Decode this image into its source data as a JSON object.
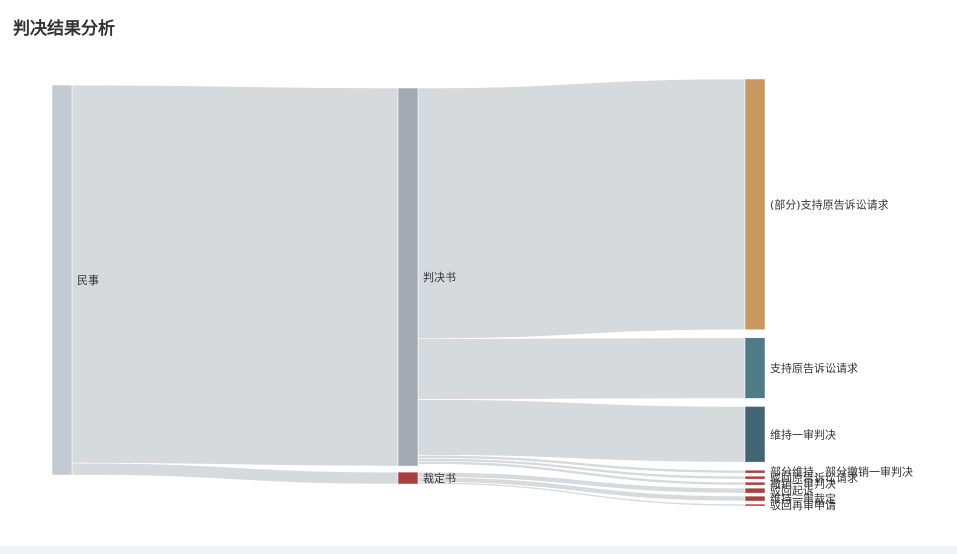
{
  "title": "判决结果分析",
  "chart_data": {
    "type": "sankey",
    "nodes": [
      {
        "id": "民事",
        "label": "民事",
        "column": 0,
        "color": "#c3cbd2"
      },
      {
        "id": "判决书",
        "label": "判决书",
        "column": 1,
        "color": "#a2abb3"
      },
      {
        "id": "裁定书",
        "label": "裁定书",
        "column": 1,
        "color": "#a8403f"
      },
      {
        "id": "部分支持",
        "label": "(部分)支持原告诉讼请求",
        "column": 2,
        "color": "#c7995f"
      },
      {
        "id": "支持原告",
        "label": "支持原告诉讼请求",
        "column": 2,
        "color": "#4f7b87"
      },
      {
        "id": "维持一审判决",
        "label": "维持一审判决",
        "column": 2,
        "color": "#436674"
      },
      {
        "id": "部分维持",
        "label": "部分维持，部分撤销一审判决",
        "column": 2,
        "color": "#a8403f"
      },
      {
        "id": "驳回原告",
        "label": "驳回原告诉讼请求",
        "column": 2,
        "color": "#a8403f"
      },
      {
        "id": "撤销一审判决",
        "label": "撤销一审判决",
        "column": 2,
        "color": "#a8403f"
      },
      {
        "id": "驳回起诉",
        "label": "驳回起诉",
        "column": 2,
        "color": "#a8403f"
      },
      {
        "id": "维持一审裁定",
        "label": "维持一审裁定",
        "column": 2,
        "color": "#a8403f"
      },
      {
        "id": "驳回再审申请",
        "label": "驳回再审申请",
        "column": 2,
        "color": "#a8403f"
      }
    ],
    "links": [
      {
        "source": "民事",
        "target": "判决书",
        "value": 380
      },
      {
        "source": "民事",
        "target": "裁定书",
        "value": 12
      },
      {
        "source": "判决书",
        "target": "部分支持",
        "value": 252
      },
      {
        "source": "判决书",
        "target": "支持原告",
        "value": 61
      },
      {
        "source": "判决书",
        "target": "维持一审判决",
        "value": 56
      },
      {
        "source": "判决书",
        "target": "部分维持",
        "value": 3
      },
      {
        "source": "判决书",
        "target": "驳回原告",
        "value": 3
      },
      {
        "source": "判决书",
        "target": "撤销一审判决",
        "value": 3
      },
      {
        "source": "裁定书",
        "target": "驳回起诉",
        "value": 5
      },
      {
        "source": "裁定书",
        "target": "维持一审裁定",
        "value": 5
      },
      {
        "source": "裁定书",
        "target": "驳回再审申请",
        "value": 2
      }
    ],
    "link_color": "#d6dadd"
  }
}
